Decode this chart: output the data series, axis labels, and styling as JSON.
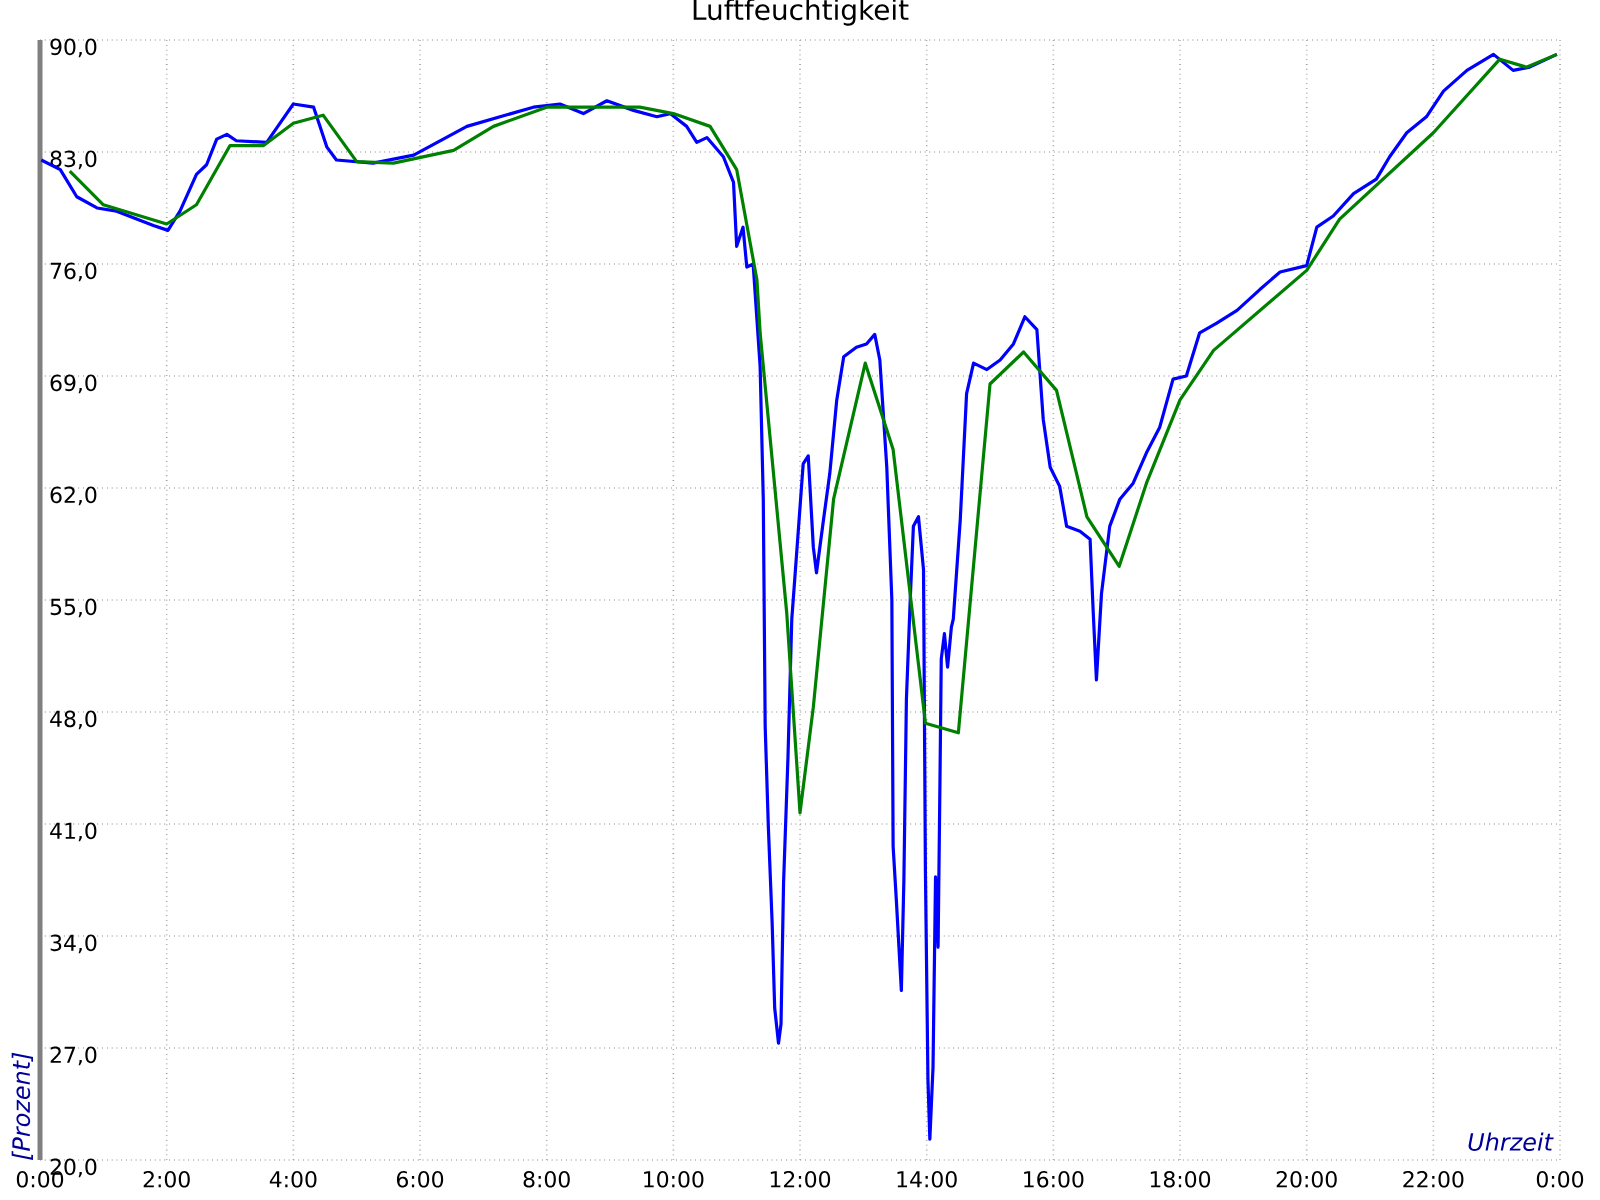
{
  "chart_data": {
    "type": "line",
    "title": "Luftfeuchtigkeit",
    "xlabel": "Uhrzeit",
    "ylabel": "[Prozent]",
    "xlim": [
      0,
      24
    ],
    "ylim": [
      20,
      90
    ],
    "grid": true,
    "xticks": [
      {
        "value": 0,
        "label": "0:00"
      },
      {
        "value": 2,
        "label": "2:00"
      },
      {
        "value": 4,
        "label": "4:00"
      },
      {
        "value": 6,
        "label": "6:00"
      },
      {
        "value": 8,
        "label": "8:00"
      },
      {
        "value": 10,
        "label": "10:00"
      },
      {
        "value": 12,
        "label": "12:00"
      },
      {
        "value": 14,
        "label": "14:00"
      },
      {
        "value": 16,
        "label": "16:00"
      },
      {
        "value": 18,
        "label": "18:00"
      },
      {
        "value": 20,
        "label": "20:00"
      },
      {
        "value": 22,
        "label": "22:00"
      },
      {
        "value": 24,
        "label": "0:00"
      }
    ],
    "yticks": [
      {
        "value": 20,
        "label": "20,0"
      },
      {
        "value": 27,
        "label": "27,0"
      },
      {
        "value": 34,
        "label": "34,0"
      },
      {
        "value": 41,
        "label": "41,0"
      },
      {
        "value": 48,
        "label": "48,0"
      },
      {
        "value": 55,
        "label": "55,0"
      },
      {
        "value": 62,
        "label": "62,0"
      },
      {
        "value": 69,
        "label": "69,0"
      },
      {
        "value": 76,
        "label": "76,0"
      },
      {
        "value": 83,
        "label": "83,0"
      },
      {
        "value": 90,
        "label": "90,0"
      }
    ],
    "series": [
      {
        "color": "#0000ff",
        "x": [
          0.02,
          0.32,
          0.58,
          0.9,
          1.21,
          1.79,
          2.02,
          2.21,
          2.47,
          2.63,
          2.79,
          2.95,
          3.1,
          3.58,
          3.79,
          4.0,
          4.32,
          4.53,
          4.68,
          5.26,
          5.9,
          6.74,
          7.79,
          8.21,
          8.58,
          8.95,
          9.37,
          9.74,
          9.95,
          10.21,
          10.37,
          10.53,
          10.79,
          10.95,
          11.0,
          11.1,
          11.16,
          11.26,
          11.37,
          11.42,
          11.45,
          11.5,
          11.56,
          11.6,
          11.66,
          11.7,
          11.74,
          11.81,
          11.87,
          11.9,
          12.0,
          12.05,
          12.13,
          12.21,
          12.26,
          12.37,
          12.47,
          12.58,
          12.69,
          12.89,
          13.05,
          13.18,
          13.26,
          13.37,
          13.45,
          13.47,
          13.52,
          13.6,
          13.64,
          13.68,
          13.74,
          13.79,
          13.87,
          13.95,
          13.98,
          14.02,
          14.05,
          14.1,
          14.14,
          14.18,
          14.21,
          14.23,
          14.28,
          14.33,
          14.39,
          14.42,
          14.53,
          14.63,
          14.74,
          14.95,
          15.16,
          15.37,
          15.55,
          15.74,
          15.84,
          15.95,
          16.1,
          16.21,
          16.42,
          16.58,
          16.63,
          16.68,
          16.76,
          16.89,
          17.05,
          17.26,
          17.47,
          17.68,
          17.89,
          18.1,
          18.31,
          18.58,
          18.9,
          19.26,
          19.58,
          20.0,
          20.16,
          20.42,
          20.74,
          21.1,
          21.31,
          21.58,
          21.89,
          22.16,
          22.53,
          22.95,
          23.26,
          23.52,
          23.95
        ],
        "values": [
          82.5,
          81.9,
          80.2,
          79.5,
          79.3,
          78.4,
          78.1,
          79.3,
          81.6,
          82.2,
          83.8,
          84.1,
          83.7,
          83.6,
          84.8,
          86.0,
          85.8,
          83.3,
          82.5,
          82.3,
          82.8,
          84.6,
          85.8,
          86.0,
          85.4,
          86.2,
          85.6,
          85.2,
          85.4,
          84.6,
          83.6,
          83.9,
          82.7,
          81.1,
          77.1,
          78.3,
          75.8,
          76.0,
          69.6,
          61.3,
          47.1,
          40.8,
          34.8,
          29.5,
          27.3,
          28.5,
          37.3,
          45.2,
          53.8,
          55.4,
          60.8,
          63.5,
          64.0,
          58.3,
          56.7,
          60.0,
          62.9,
          67.5,
          70.2,
          70.8,
          71.0,
          71.6,
          70.0,
          63.3,
          55.0,
          39.6,
          36.3,
          30.6,
          37.5,
          48.8,
          55.0,
          59.6,
          60.2,
          56.9,
          38.1,
          25.0,
          21.3,
          25.8,
          37.7,
          33.3,
          43.8,
          51.3,
          52.9,
          50.8,
          53.3,
          53.8,
          60.0,
          67.9,
          69.8,
          69.4,
          70.0,
          71.0,
          72.7,
          71.9,
          66.3,
          63.3,
          62.1,
          59.6,
          59.3,
          58.8,
          54.2,
          50.0,
          55.4,
          59.6,
          61.3,
          62.3,
          64.2,
          65.8,
          68.8,
          69.0,
          71.7,
          72.3,
          73.1,
          74.4,
          75.5,
          75.9,
          78.3,
          79.0,
          80.4,
          81.3,
          82.7,
          84.2,
          85.2,
          86.8,
          88.1,
          89.1,
          88.1,
          88.3,
          89.1
        ]
      },
      {
        "color": "#008000",
        "x": [
          0.47,
          1.0,
          2.0,
          2.47,
          3.0,
          3.53,
          4.0,
          4.47,
          5.0,
          5.58,
          6.53,
          7.16,
          8.0,
          9.47,
          10.0,
          10.58,
          11.0,
          11.32,
          11.37,
          11.79,
          12.0,
          12.21,
          12.53,
          13.03,
          13.47,
          13.98,
          14.5,
          15.0,
          15.53,
          16.05,
          16.53,
          17.04,
          17.47,
          18.0,
          18.53,
          20.0,
          20.52,
          22.0,
          23.05,
          23.47,
          23.95
        ],
        "values": [
          81.8,
          79.7,
          78.5,
          79.7,
          83.4,
          83.4,
          84.8,
          85.3,
          82.4,
          82.3,
          83.1,
          84.6,
          85.8,
          85.8,
          85.4,
          84.6,
          81.9,
          75.0,
          71.7,
          54.2,
          41.7,
          48.3,
          61.3,
          69.8,
          64.4,
          47.3,
          46.7,
          68.5,
          70.5,
          68.1,
          60.2,
          57.1,
          62.3,
          67.5,
          70.6,
          75.6,
          78.8,
          84.2,
          88.8,
          88.3,
          89.1
        ]
      }
    ]
  }
}
